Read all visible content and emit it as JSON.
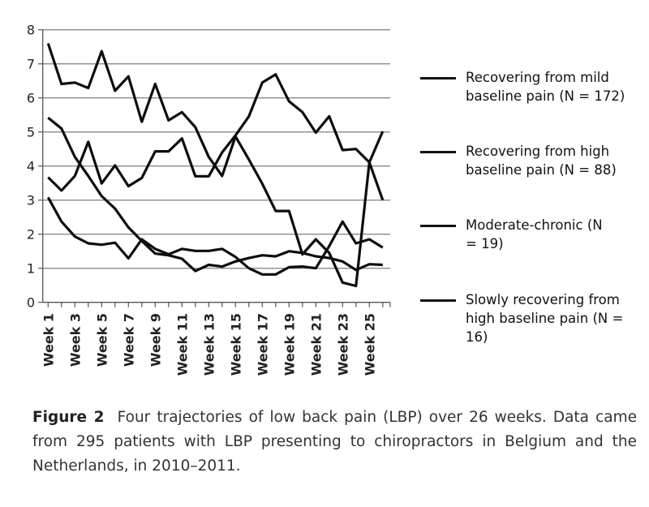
{
  "chart_data": {
    "type": "line",
    "title": "",
    "xlabel": "",
    "ylabel": "",
    "ylim": [
      0,
      8
    ],
    "yticks": [
      "0",
      "1",
      "2",
      "3",
      "4",
      "5",
      "6",
      "7",
      "8"
    ],
    "x": [
      1,
      2,
      3,
      4,
      5,
      6,
      7,
      8,
      9,
      10,
      11,
      12,
      13,
      14,
      15,
      16,
      17,
      18,
      19,
      20,
      21,
      22,
      23,
      24,
      25,
      26
    ],
    "xtick_labels": [
      "Week 1",
      "Week 3",
      "Week 5",
      "Week 7",
      "Week 9",
      "Week 11",
      "Week 13",
      "Week 15",
      "Week 17",
      "Week 19",
      "Week 21",
      "Week 23",
      "Week 25"
    ],
    "grid": true,
    "legend_position": "right",
    "series": [
      {
        "name": "Recovering from mild baseline pain",
        "n_label": "(N = 172)",
        "values": [
          3.08,
          2.37,
          1.93,
          1.73,
          1.69,
          1.75,
          1.29,
          1.85,
          1.57,
          1.41,
          1.57,
          1.51,
          1.51,
          1.57,
          1.33,
          1.0,
          0.82,
          0.82,
          1.03,
          1.05,
          1.0,
          1.65,
          2.37,
          1.73,
          1.85,
          1.61
        ]
      },
      {
        "name": "Recovering from high baseline pain",
        "n_label": "(N = 88)",
        "values": [
          5.42,
          5.1,
          4.27,
          3.71,
          3.12,
          2.75,
          2.2,
          1.8,
          1.43,
          1.38,
          1.28,
          0.92,
          1.1,
          1.05,
          1.2,
          1.3,
          1.38,
          1.35,
          1.5,
          1.45,
          1.35,
          1.3,
          1.2,
          0.95,
          1.12,
          1.1
        ]
      },
      {
        "name": "Moderate-chronic",
        "n_label": "(N = 19)",
        "values": [
          3.67,
          3.28,
          3.71,
          4.71,
          3.49,
          4.02,
          3.41,
          3.65,
          4.43,
          4.43,
          4.81,
          3.7,
          3.7,
          4.4,
          4.9,
          5.46,
          6.45,
          6.69,
          5.9,
          5.58,
          4.98,
          5.46,
          4.47,
          4.5,
          4.11,
          3.0
        ]
      },
      {
        "name": "Slowly recovering from high baseline pain",
        "n_label": "(N = 16)",
        "values": [
          7.6,
          6.41,
          6.45,
          6.29,
          7.37,
          6.21,
          6.63,
          5.3,
          6.41,
          5.34,
          5.58,
          5.14,
          4.27,
          3.71,
          4.87,
          4.19,
          3.48,
          2.68,
          2.68,
          1.41,
          1.85,
          1.45,
          0.58,
          0.48,
          4.11,
          5.02
        ]
      }
    ]
  },
  "caption": {
    "label": "Figure 2",
    "text": "Four trajectories of low back pain (LBP) over 26 weeks. Data came from 295 patients with LBP presenting to chiropractors in Belgium and the Netherlands, in 2010–2011."
  }
}
